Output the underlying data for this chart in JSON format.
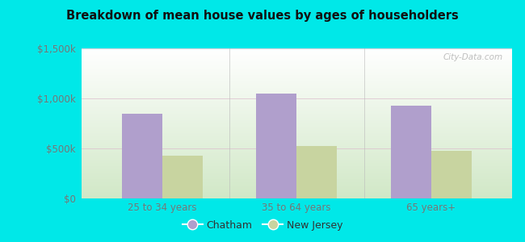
{
  "title": "Breakdown of mean house values by ages of householders",
  "categories": [
    "25 to 34 years",
    "35 to 64 years",
    "65 years+"
  ],
  "chatham_values": [
    850000,
    1050000,
    925000
  ],
  "nj_values": [
    425000,
    525000,
    475000
  ],
  "chatham_color": "#b09fcc",
  "nj_color": "#c8d4a0",
  "ylim": [
    0,
    1500000
  ],
  "yticks": [
    0,
    500000,
    1000000,
    1500000
  ],
  "ytick_labels": [
    "$0",
    "$500k",
    "$1,000k",
    "$1,500k"
  ],
  "background_outer": "#00e8e8",
  "background_inner_top": "#ffffff",
  "background_inner_bottom": "#d0e8c8",
  "watermark": "City-Data.com",
  "legend_labels": [
    "Chatham",
    "New Jersey"
  ],
  "bar_width": 0.3,
  "divider_color": "#bbbbbb",
  "tick_color": "#777777",
  "title_color": "#111111"
}
